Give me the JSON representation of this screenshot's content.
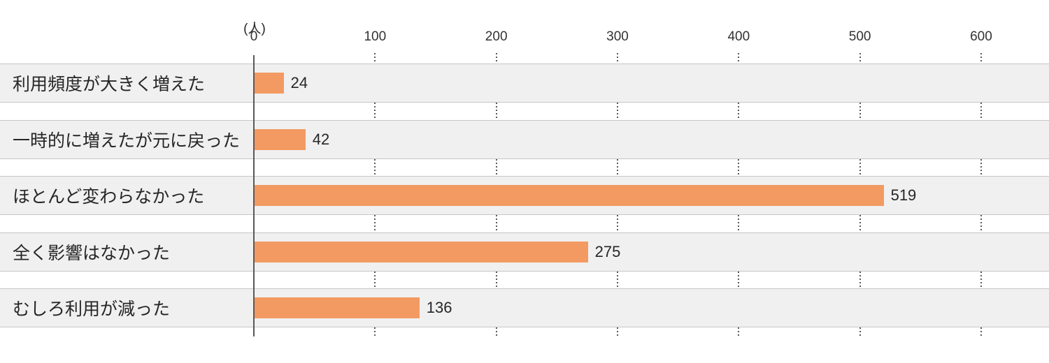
{
  "chart_data": {
    "type": "bar",
    "orientation": "horizontal",
    "title": "",
    "unit_label": "(人)",
    "categories": [
      "利用頻度が大きく増えた",
      "一時的に増えたが元に戻った",
      "ほとんど変わらなかった",
      "全く影響はなかった",
      "むしろ利用が減った"
    ],
    "values": [
      24,
      42,
      519,
      275,
      136
    ],
    "x_ticks": [
      0,
      100,
      200,
      300,
      400,
      500,
      600
    ],
    "xlim": [
      0,
      656
    ],
    "grid": "dotted-vertical-between-rows",
    "legend": "none",
    "value_labels_position": "right-of-bar",
    "colors": {
      "bar": "#F29A62",
      "row_band": "#F0F0F0",
      "row_band_border": "#C6C6C6",
      "axis_line": "#595959",
      "grid_dots": "#595959",
      "text": "#262626"
    }
  }
}
